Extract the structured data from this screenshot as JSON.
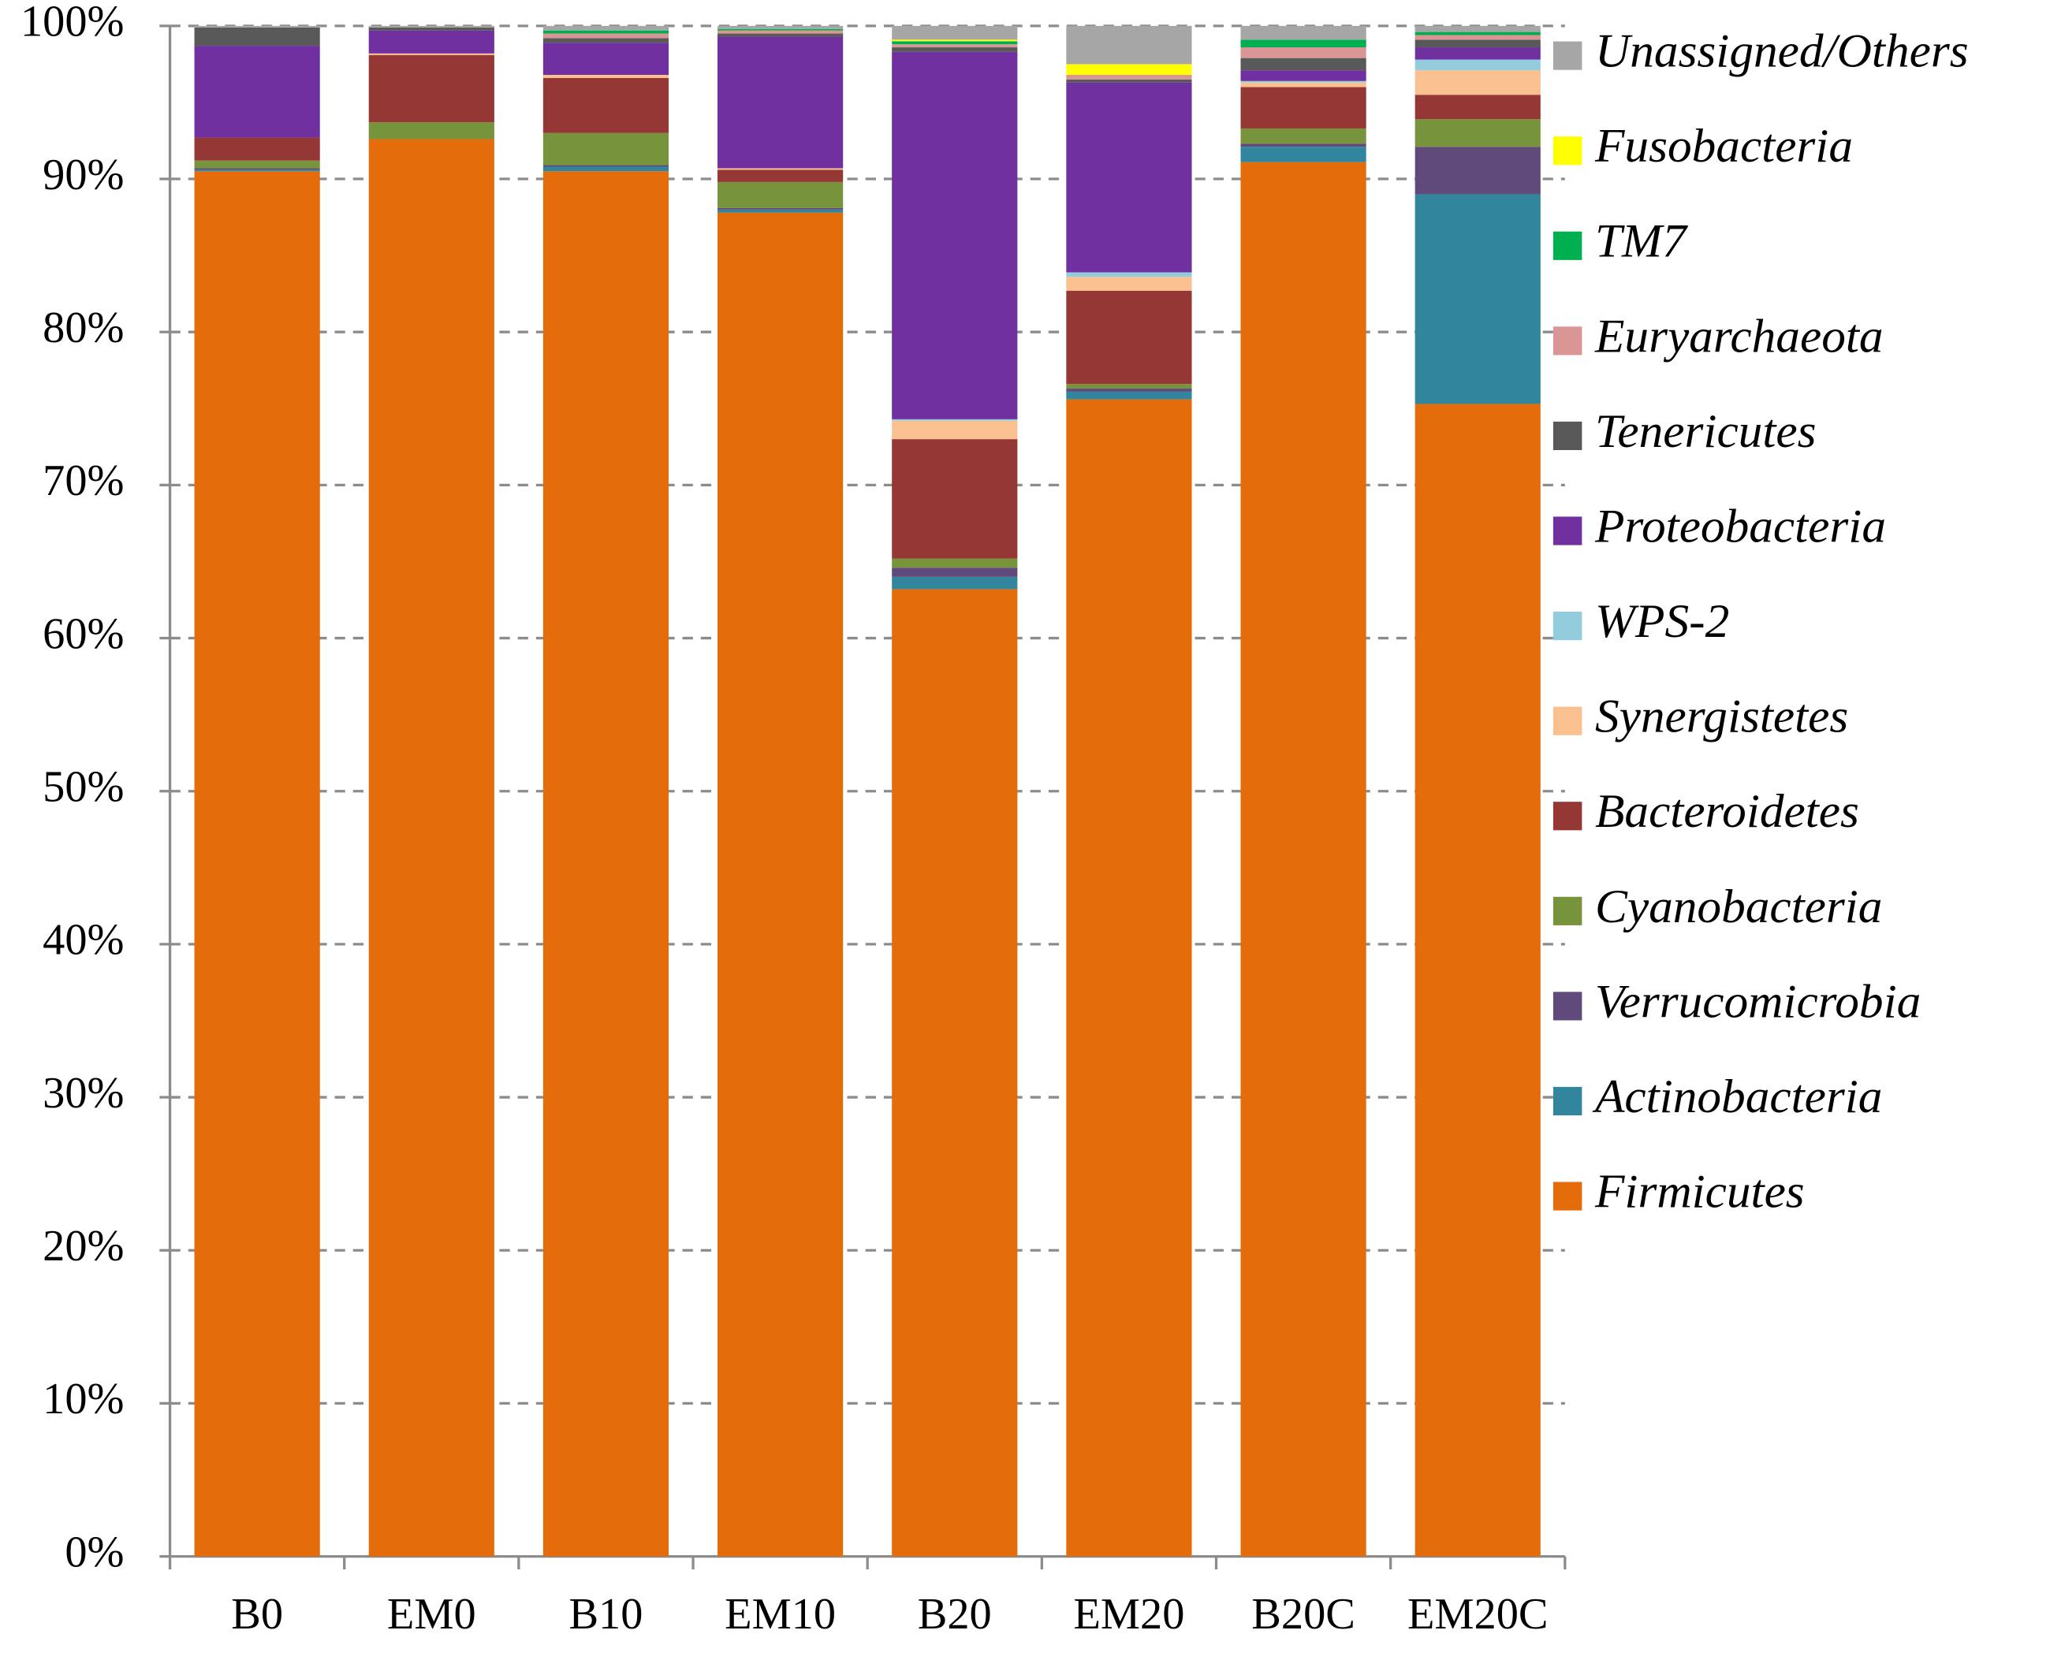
{
  "chart_data": {
    "type": "stacked-bar",
    "categories": [
      "B0",
      "EM0",
      "B10",
      "EM10",
      "B20",
      "EM20",
      "B20C",
      "EM20C"
    ],
    "series": [
      {
        "name": "Firmicutes",
        "color": "#e46c0a",
        "values": [
          90.5,
          92.6,
          90.5,
          87.8,
          63.2,
          75.6,
          91.1,
          75.3
        ]
      },
      {
        "name": "Actinobacteria",
        "color": "#31859c",
        "values": [
          0.1,
          0,
          0.3,
          0.2,
          0.8,
          0.5,
          1.0,
          13.7
        ]
      },
      {
        "name": "Verrucomicrobia",
        "color": "#604a7b",
        "values": [
          0.1,
          0,
          0.1,
          0.1,
          0.6,
          0.2,
          0.2,
          3.1
        ]
      },
      {
        "name": "Cyanobacteria",
        "color": "#77933c",
        "values": [
          0.5,
          1.1,
          2.1,
          1.7,
          0.6,
          0.3,
          1.0,
          1.8
        ]
      },
      {
        "name": "Bacteroidetes",
        "color": "#953735",
        "values": [
          1.5,
          4.4,
          3.6,
          0.8,
          7.8,
          6.1,
          2.7,
          1.6
        ]
      },
      {
        "name": "Synergistetes",
        "color": "#fac090",
        "values": [
          0,
          0.1,
          0.2,
          0.1,
          1.2,
          0.9,
          0.3,
          1.6
        ]
      },
      {
        "name": "WPS-2",
        "color": "#93cddd",
        "values": [
          0,
          0,
          0,
          0,
          0.1,
          0.3,
          0.1,
          0.7
        ]
      },
      {
        "name": "Proteobacteria",
        "color": "#7030a0",
        "values": [
          6.0,
          1.5,
          2.1,
          8.6,
          24.0,
          12.4,
          0.7,
          0.8
        ]
      },
      {
        "name": "Tenericutes",
        "color": "#595959",
        "values": [
          1.2,
          0.2,
          0.3,
          0.2,
          0.3,
          0.2,
          0.8,
          0.5
        ]
      },
      {
        "name": "Euryarchaeota",
        "color": "#d99694",
        "values": [
          0,
          0,
          0.3,
          0.2,
          0.2,
          0.3,
          0.7,
          0.3
        ]
      },
      {
        "name": "TM7",
        "color": "#00b050",
        "values": [
          0,
          0,
          0.2,
          0.1,
          0.2,
          0,
          0.5,
          0.2
        ]
      },
      {
        "name": "Fusobacteria",
        "color": "#ffff00",
        "values": [
          0,
          0,
          0,
          0,
          0.1,
          0.7,
          0,
          0
        ]
      },
      {
        "name": "Unassigned/Others",
        "color": "#a6a6a6",
        "values": [
          0.1,
          0.1,
          0.3,
          0.2,
          0.9,
          2.5,
          0.9,
          0.4
        ]
      }
    ],
    "ylim": [
      0,
      100
    ],
    "yticks": [
      {
        "value": 0,
        "label": "0%"
      },
      {
        "value": 10,
        "label": "10%"
      },
      {
        "value": 20,
        "label": "20%"
      },
      {
        "value": 30,
        "label": "30%"
      },
      {
        "value": 40,
        "label": "40%"
      },
      {
        "value": 50,
        "label": "50%"
      },
      {
        "value": 60,
        "label": "60%"
      },
      {
        "value": 70,
        "label": "70%"
      },
      {
        "value": 80,
        "label": "80%"
      },
      {
        "value": 90,
        "label": "90%"
      },
      {
        "value": 100,
        "label": "100%"
      }
    ],
    "grid": true,
    "legend": "right"
  }
}
